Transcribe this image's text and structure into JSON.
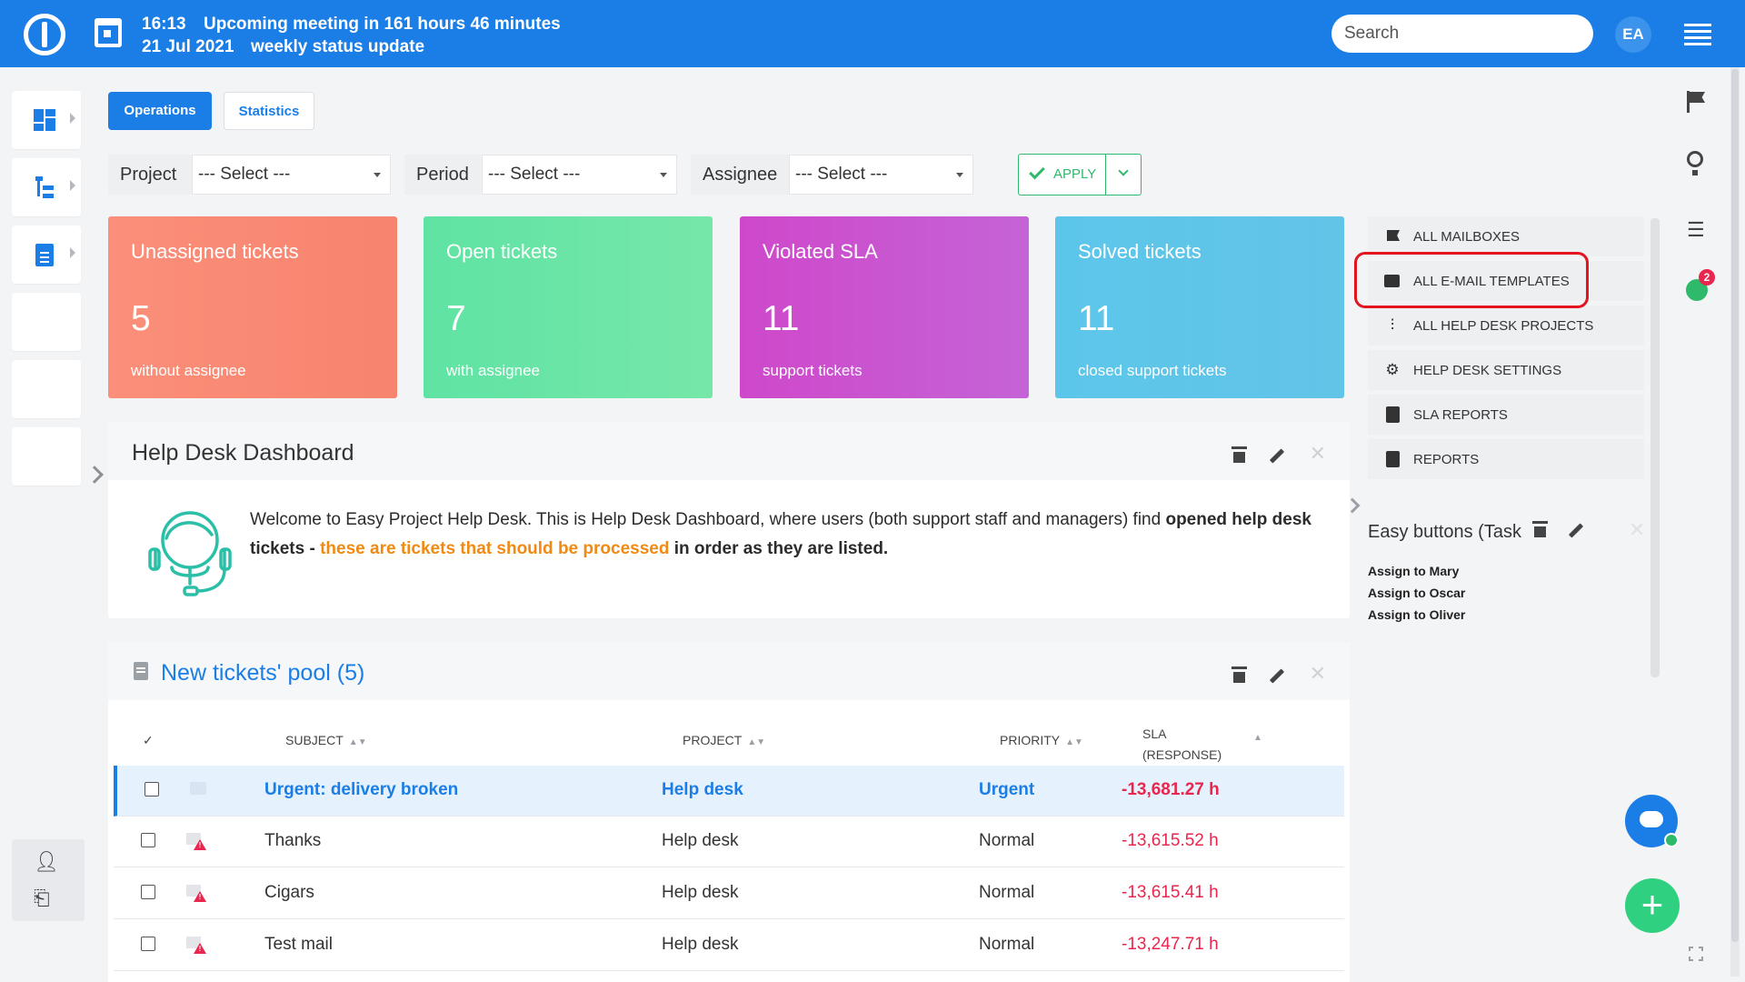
{
  "topbar": {
    "time": "16:13",
    "date": "21 Jul 2021",
    "meeting_line": "Upcoming meeting in 161 hours 46 minutes",
    "meeting_name": "weekly status update",
    "search_placeholder": "Search",
    "avatar_initials": "EA"
  },
  "tabs": [
    {
      "label": "Operations",
      "active": true
    },
    {
      "label": "Statistics",
      "active": false
    }
  ],
  "filters": {
    "project_label": "Project",
    "project_value": "--- Select ---",
    "period_label": "Period",
    "period_value": "--- Select ---",
    "assignee_label": "Assignee",
    "assignee_value": "--- Select ---",
    "apply_label": "APPLY"
  },
  "cards": [
    {
      "title": "Unassigned tickets",
      "value": "5",
      "sub": "without assignee"
    },
    {
      "title": "Open tickets",
      "value": "7",
      "sub": "with assignee"
    },
    {
      "title": "Violated SLA",
      "value": "11",
      "sub": "support tickets"
    },
    {
      "title": "Solved tickets",
      "value": "11",
      "sub": "closed support tickets"
    }
  ],
  "dashboard": {
    "title": "Help Desk Dashboard",
    "text_a": "Welcome to Easy Project Help Desk. This is Help Desk Dashboard, where users (both support staff and managers) find ",
    "text_b": "opened help desk tickets - ",
    "text_c": "these are tickets that should be processed",
    "text_d": " in order as they are listed."
  },
  "pool": {
    "title": "New tickets' pool (5)",
    "headers": {
      "check": "✓",
      "subject": "SUBJECT",
      "project": "PROJECT",
      "priority": "PRIORITY",
      "sla1": "SLA",
      "sla2": "(RESPONSE)"
    },
    "rows": [
      {
        "subject": "Urgent: delivery broken",
        "project": "Help desk",
        "priority": "Urgent",
        "sla": "-13,681.27 h"
      },
      {
        "subject": "Thanks",
        "project": "Help desk",
        "priority": "Normal",
        "sla": "-13,615.52 h"
      },
      {
        "subject": "Cigars",
        "project": "Help desk",
        "priority": "Normal",
        "sla": "-13,615.41 h"
      },
      {
        "subject": "Test mail",
        "project": "Help desk",
        "priority": "Normal",
        "sla": "-13,247.71 h"
      }
    ]
  },
  "right_menu": [
    {
      "label": "ALL MAILBOXES",
      "icon": "flag-icon"
    },
    {
      "label": "ALL E-MAIL TEMPLATES",
      "icon": "chat-icon"
    },
    {
      "label": "ALL HELP DESK PROJECTS",
      "icon": "tree-icon"
    },
    {
      "label": "HELP DESK SETTINGS",
      "icon": "gear-icon"
    },
    {
      "label": "SLA REPORTS",
      "icon": "clipboard-icon"
    },
    {
      "label": "REPORTS",
      "icon": "clipboard-icon"
    }
  ],
  "easy_buttons": {
    "title": "Easy buttons (Task",
    "links": [
      "Assign to Mary",
      "Assign to Oscar",
      "Assign to Oliver"
    ]
  },
  "notification_count": "2",
  "colors": {
    "brand": "#1a7ee6",
    "green": "#2fba6b",
    "sla_red": "#e8264e",
    "highlight_red": "#e3141e"
  }
}
